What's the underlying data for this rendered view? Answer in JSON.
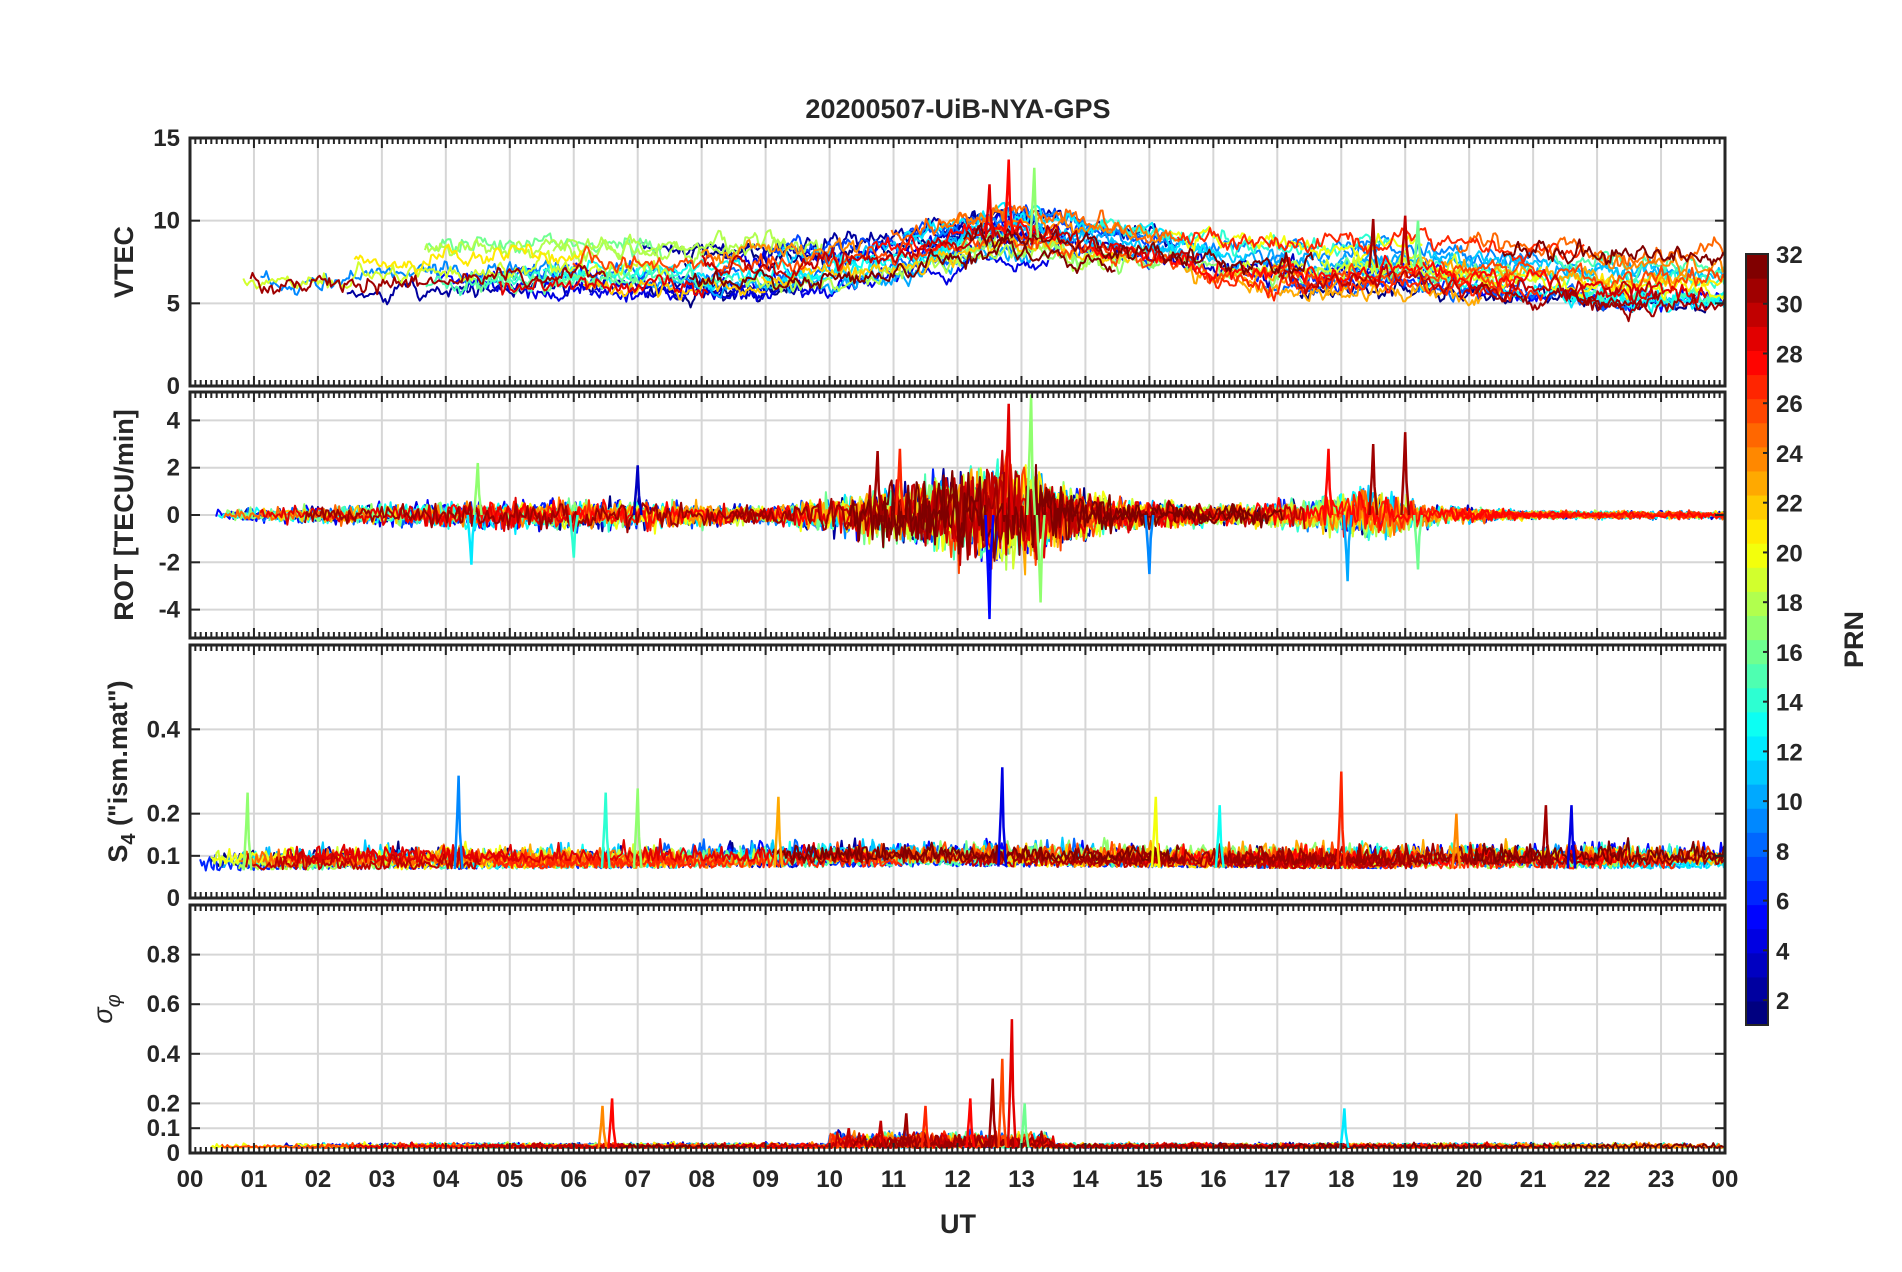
{
  "chart_data": {
    "type": "line",
    "title": "20200507-UiB-NYA-GPS",
    "xlabel": "UT",
    "x_ticks": [
      "00",
      "01",
      "02",
      "03",
      "04",
      "05",
      "06",
      "07",
      "08",
      "09",
      "10",
      "11",
      "12",
      "13",
      "14",
      "15",
      "16",
      "17",
      "18",
      "19",
      "20",
      "21",
      "22",
      "23",
      "00"
    ],
    "xlim": [
      0,
      24
    ],
    "grid": true,
    "colormap": "jet",
    "colorbar": {
      "label": "PRN",
      "range": [
        1,
        32
      ],
      "ticks": [
        "2",
        "4",
        "6",
        "8",
        "10",
        "12",
        "14",
        "16",
        "18",
        "20",
        "22",
        "24",
        "26",
        "28",
        "30",
        "32"
      ],
      "placement": "right"
    },
    "panels": [
      {
        "id": "vtec",
        "ylabel": "VTEC",
        "ylim": [
          0,
          15
        ],
        "y_ticks": [
          0,
          5,
          10,
          15
        ],
        "baseline": [
          [
            0,
            6.5
          ],
          [
            2,
            6.4
          ],
          [
            4,
            6.9
          ],
          [
            6,
            7.2
          ],
          [
            8,
            7.1
          ],
          [
            10,
            7.4
          ],
          [
            11,
            7.8
          ],
          [
            12,
            8.6
          ],
          [
            12.8,
            9.2
          ],
          [
            14,
            8.5
          ],
          [
            16,
            7.3
          ],
          [
            18,
            7.0
          ],
          [
            19,
            7.3
          ],
          [
            20,
            6.9
          ],
          [
            22,
            6.4
          ],
          [
            24,
            6.3
          ]
        ],
        "noise": 0.45,
        "spikes": [
          {
            "t": 12.8,
            "v": 13.7,
            "prn": 28
          },
          {
            "t": 13.2,
            "v": 13.2,
            "prn": 17
          },
          {
            "t": 12.5,
            "v": 12.2,
            "prn": 29
          },
          {
            "t": 18.5,
            "v": 10.1,
            "prn": 31
          },
          {
            "t": 19.0,
            "v": 10.3,
            "prn": 30
          },
          {
            "t": 19.2,
            "v": 10.0,
            "prn": 16
          }
        ]
      },
      {
        "id": "rot",
        "ylabel": "ROT [TECU/min]",
        "ylim": [
          -5.2,
          5.2
        ],
        "y_ticks": [
          -4,
          -2,
          0,
          2,
          4
        ],
        "baseline": [
          [
            0,
            0
          ],
          [
            24,
            0
          ]
        ],
        "noise_envelope": [
          [
            0,
            0.15
          ],
          [
            3,
            0.35
          ],
          [
            5,
            0.45
          ],
          [
            7,
            0.45
          ],
          [
            9,
            0.3
          ],
          [
            10,
            0.55
          ],
          [
            11,
            0.9
          ],
          [
            12,
            1.4
          ],
          [
            12.8,
            1.8
          ],
          [
            13.5,
            1.0
          ],
          [
            14.5,
            0.5
          ],
          [
            16,
            0.3
          ],
          [
            17.5,
            0.5
          ],
          [
            18.5,
            0.8
          ],
          [
            19.5,
            0.3
          ],
          [
            21,
            0.12
          ],
          [
            24,
            0.12
          ]
        ],
        "spikes": [
          {
            "t": 12.8,
            "v": 4.7,
            "prn": 29
          },
          {
            "t": 12.5,
            "v": -4.4,
            "prn": 5
          },
          {
            "t": 13.15,
            "v": 5.1,
            "prn": 17
          },
          {
            "t": 13.3,
            "v": -3.7,
            "prn": 17
          },
          {
            "t": 10.75,
            "v": 2.7,
            "prn": 31
          },
          {
            "t": 11.1,
            "v": 2.8,
            "prn": 27
          },
          {
            "t": 7.0,
            "v": 2.1,
            "prn": 3
          },
          {
            "t": 4.5,
            "v": 2.2,
            "prn": 17
          },
          {
            "t": 4.4,
            "v": -2.1,
            "prn": 12
          },
          {
            "t": 17.8,
            "v": 2.8,
            "prn": 28
          },
          {
            "t": 18.5,
            "v": 3.0,
            "prn": 31
          },
          {
            "t": 19.0,
            "v": 3.5,
            "prn": 31
          },
          {
            "t": 18.1,
            "v": -2.8,
            "prn": 10
          },
          {
            "t": 19.2,
            "v": -2.3,
            "prn": 16
          },
          {
            "t": 15.0,
            "v": -2.5,
            "prn": 9
          },
          {
            "t": 6.0,
            "v": -1.8,
            "prn": 14
          }
        ]
      },
      {
        "id": "s4",
        "ylabel": "S4 (\"ism.mat\")",
        "ylim": [
          0,
          0.6
        ],
        "y_ticks": [
          0,
          0.1,
          0.2,
          0.4
        ],
        "baseline": [
          [
            0,
            0.065
          ],
          [
            6,
            0.07
          ],
          [
            12,
            0.075
          ],
          [
            18,
            0.07
          ],
          [
            24,
            0.07
          ]
        ],
        "noise": 0.018,
        "spikes": [
          {
            "t": 4.2,
            "v": 0.29,
            "prn": 9
          },
          {
            "t": 12.7,
            "v": 0.31,
            "prn": 4
          },
          {
            "t": 18.0,
            "v": 0.3,
            "prn": 27
          },
          {
            "t": 0.9,
            "v": 0.25,
            "prn": 17
          },
          {
            "t": 7.0,
            "v": 0.26,
            "prn": 17
          },
          {
            "t": 6.5,
            "v": 0.25,
            "prn": 14
          },
          {
            "t": 9.2,
            "v": 0.24,
            "prn": 23
          },
          {
            "t": 15.1,
            "v": 0.24,
            "prn": 20
          },
          {
            "t": 21.2,
            "v": 0.22,
            "prn": 31
          },
          {
            "t": 21.6,
            "v": 0.22,
            "prn": 4
          },
          {
            "t": 19.8,
            "v": 0.2,
            "prn": 24
          },
          {
            "t": 16.1,
            "v": 0.22,
            "prn": 13
          }
        ]
      },
      {
        "id": "sigma_phi",
        "ylabel": "σφ",
        "ylim": [
          0,
          1.0
        ],
        "y_ticks": [
          0,
          0.1,
          0.2,
          0.4,
          0.6,
          0.8
        ],
        "baseline": [
          [
            0,
            0.02
          ],
          [
            24,
            0.02
          ]
        ],
        "noise": 0.008,
        "spikes": [
          {
            "t": 12.85,
            "v": 0.54,
            "prn": 29
          },
          {
            "t": 12.7,
            "v": 0.38,
            "prn": 26
          },
          {
            "t": 12.55,
            "v": 0.3,
            "prn": 31
          },
          {
            "t": 12.2,
            "v": 0.22,
            "prn": 28
          },
          {
            "t": 13.05,
            "v": 0.2,
            "prn": 16
          },
          {
            "t": 6.6,
            "v": 0.22,
            "prn": 28
          },
          {
            "t": 6.45,
            "v": 0.19,
            "prn": 24
          },
          {
            "t": 18.05,
            "v": 0.18,
            "prn": 12
          },
          {
            "t": 11.2,
            "v": 0.16,
            "prn": 31
          },
          {
            "t": 10.8,
            "v": 0.13,
            "prn": 30
          },
          {
            "t": 11.5,
            "v": 0.19,
            "prn": 27
          },
          {
            "t": 10.3,
            "v": 0.1,
            "prn": 30
          }
        ]
      }
    ]
  }
}
